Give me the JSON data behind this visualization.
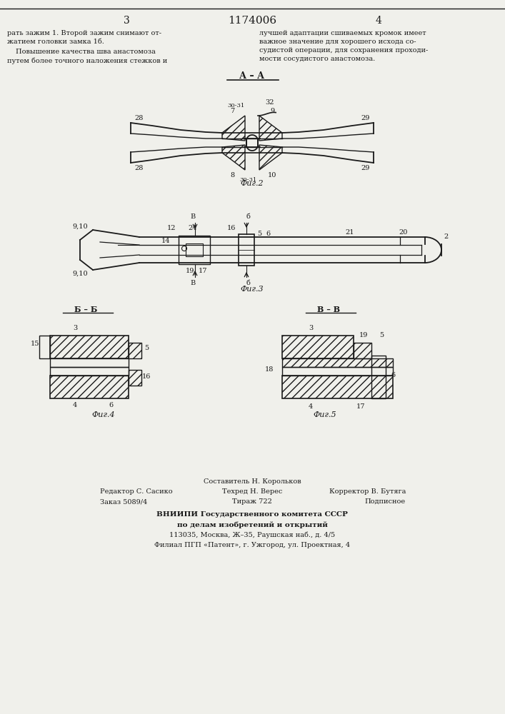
{
  "bg_color": "#f0f0eb",
  "title_text": "1174006",
  "page_left": "3",
  "page_right": "4",
  "section_aa": "А – А",
  "fig2_label": "Фиг.2",
  "fig3_label": "Фиг.3",
  "fig4_label": "Фиг.4",
  "fig5_label": "Фиг.5",
  "section_bb": "Б – Б",
  "section_vv": "В – В",
  "footer_line1": "Составитель Н. Корольков",
  "footer_line2_left": "Редактор С. Сасико",
  "footer_line2_mid": "Техред Н. Верес",
  "footer_line2_right": "Корректор В. Бутяга",
  "footer_line3_left": "Заказ 5089/4",
  "footer_line3_mid": "Тираж 722",
  "footer_line3_right": "Подписное",
  "footer_org": "ВНИИПИ Государственного комитета СССР",
  "footer_org2": "по делам изобретений и открытий",
  "footer_addr1": "113035, Москва, Ж–35, Раушская наб., д. 4/5",
  "footer_addr2": "Филиал ПГП «Патент», г. Ужгород, ул. Проектная, 4",
  "line_color": "#1a1a1a",
  "font_size_small": 7,
  "font_size_medium": 8,
  "font_size_large": 10
}
